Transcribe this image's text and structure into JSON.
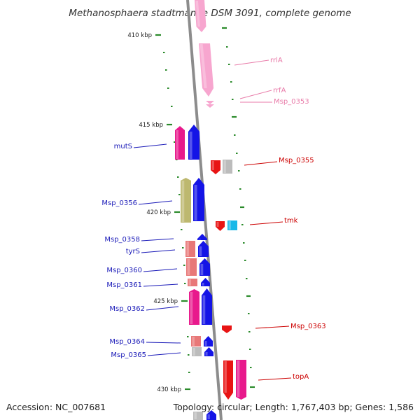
{
  "title": "Methanosphaera stadtmanae DSM 3091, complete genome",
  "footer": {
    "accession": "Accession: NC_007681",
    "summary": "Topology: circular; Length: 1,767,403 bp; Genes: 1,586"
  },
  "colors": {
    "backbone": "#8c8c8c",
    "tick": "#2a8a2a",
    "label_blue": "#1a1ab8",
    "label_red": "#cc0000",
    "label_pink": "#e87aa8",
    "gene_blue": "#1414e6",
    "gene_red": "#e81414",
    "gene_magenta": "#e8198c",
    "gene_pink_light": "#f7a6cf",
    "gene_salmon": "#e87878",
    "gene_olive": "#bdb86f",
    "gene_grey": "#bcbcbc",
    "gene_cyan": "#19b8e8"
  },
  "ticks": [
    {
      "label": "410 kbp",
      "major": true
    },
    {
      "label": "415 kbp",
      "major": true
    },
    {
      "label": "420 kbp",
      "major": true
    },
    {
      "label": "425 kbp",
      "major": true
    },
    {
      "label": "430 kbp",
      "major": true
    }
  ],
  "gene_labels": [
    {
      "name": "rrlA",
      "color_key": "label_pink"
    },
    {
      "name": "rrfA",
      "color_key": "label_pink"
    },
    {
      "name": "Msp_0353",
      "color_key": "label_pink"
    },
    {
      "name": "mutS",
      "color_key": "label_blue"
    },
    {
      "name": "Msp_0355",
      "color_key": "label_red"
    },
    {
      "name": "Msp_0356",
      "color_key": "label_blue"
    },
    {
      "name": "tmk",
      "color_key": "label_red"
    },
    {
      "name": "Msp_0358",
      "color_key": "label_blue"
    },
    {
      "name": "tyrS",
      "color_key": "label_blue"
    },
    {
      "name": "Msp_0360",
      "color_key": "label_blue"
    },
    {
      "name": "Msp_0361",
      "color_key": "label_blue"
    },
    {
      "name": "Msp_0362",
      "color_key": "label_blue"
    },
    {
      "name": "Msp_0363",
      "color_key": "label_red"
    },
    {
      "name": "Msp_0364",
      "color_key": "label_blue"
    },
    {
      "name": "Msp_0365",
      "color_key": "label_blue"
    },
    {
      "name": "topA",
      "color_key": "label_red"
    }
  ]
}
